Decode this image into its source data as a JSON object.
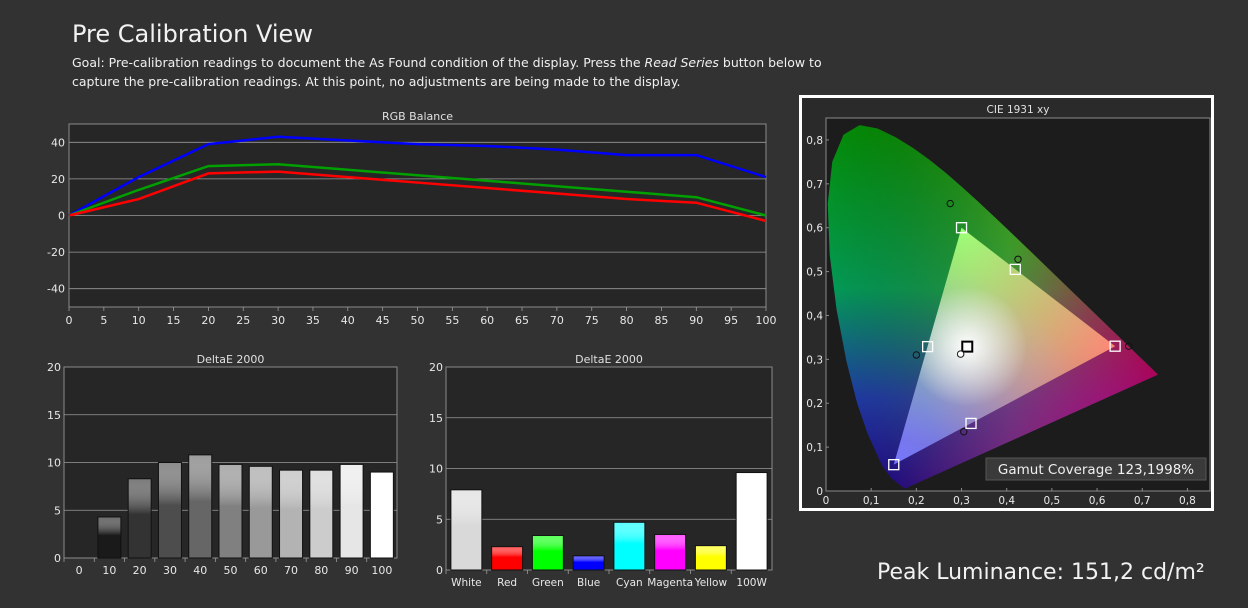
{
  "page": {
    "title": "Pre Calibration View",
    "goal_part1": "Goal: Pre-calibration readings to document the As Found condition of the display. Press the ",
    "goal_emphasis": "Read Series",
    "goal_part2": " button below to capture the pre-calibration readings. At this point, no adjustments are being made to the display.",
    "peak_luminance": "Peak Luminance: 151,2 cd/m²"
  },
  "chart_data": [
    {
      "type": "line",
      "title": "RGB Balance",
      "x": [
        0,
        10,
        20,
        30,
        40,
        50,
        60,
        70,
        80,
        90,
        100
      ],
      "xticks": [
        0,
        5,
        10,
        15,
        20,
        25,
        30,
        35,
        40,
        45,
        50,
        55,
        60,
        65,
        70,
        75,
        80,
        85,
        90,
        95,
        100
      ],
      "xlim": [
        0,
        100
      ],
      "ylim": [
        -50,
        50
      ],
      "yticks": [
        40,
        20,
        0,
        -20,
        -40
      ],
      "grid": true,
      "series": [
        {
          "color": "#0000ff",
          "values": [
            0,
            21,
            39,
            43,
            41,
            39,
            38,
            36,
            33,
            33,
            21
          ]
        },
        {
          "color": "#00a000",
          "values": [
            0,
            14,
            27,
            28,
            25,
            22,
            19,
            16,
            13,
            10,
            0
          ]
        },
        {
          "color": "#ff0000",
          "values": [
            0,
            9,
            23,
            24,
            21,
            18,
            15,
            12,
            9,
            7,
            -3
          ]
        }
      ]
    },
    {
      "type": "bar",
      "title": "DeltaE 2000",
      "categories": [
        "0",
        "10",
        "20",
        "30",
        "40",
        "50",
        "60",
        "70",
        "80",
        "90",
        "100"
      ],
      "values": [
        0,
        4.3,
        8.3,
        10,
        10.8,
        9.8,
        9.6,
        9.2,
        9.2,
        9.8,
        9
      ],
      "ylim": [
        0,
        20
      ],
      "yticks": [
        0,
        5,
        10,
        15,
        20
      ],
      "bar_shades": [
        "#000000",
        "#1a1a1a",
        "#333333",
        "#4d4d4d",
        "#666666",
        "#808080",
        "#999999",
        "#b3b3b3",
        "#cccccc",
        "#e6e6e6",
        "#ffffff"
      ]
    },
    {
      "type": "bar",
      "title": "DeltaE 2000",
      "categories": [
        "White",
        "Red",
        "Green",
        "Blue",
        "Cyan",
        "Magenta",
        "Yellow",
        "100W"
      ],
      "values": [
        7.9,
        2.3,
        3.4,
        1.4,
        4.7,
        3.5,
        2.4,
        9.6
      ],
      "ylim": [
        0,
        20
      ],
      "yticks": [
        0,
        5,
        10,
        15,
        20
      ],
      "bar_colors": [
        "#d9d9d9",
        "#ff0000",
        "#00ff00",
        "#0000ff",
        "#00ffff",
        "#ff00ff",
        "#ffff00",
        "#ffffff"
      ]
    },
    {
      "type": "scatter",
      "title": "CIE 1931 xy",
      "xlim": [
        0,
        0.85
      ],
      "ylim": [
        0,
        0.85
      ],
      "xticks": [
        "0",
        "0,1",
        "0,2",
        "0,3",
        "0,4",
        "0,5",
        "0,6",
        "0,7",
        "0,8"
      ],
      "yticks": [
        "0",
        "0,1",
        "0,2",
        "0,3",
        "0,4",
        "0,5",
        "0,6",
        "0,7",
        "0,8"
      ],
      "target_gamut": [
        [
          0.64,
          0.33
        ],
        [
          0.3,
          0.6
        ],
        [
          0.15,
          0.06
        ]
      ],
      "targets": [
        {
          "x": 0.64,
          "y": 0.33
        },
        {
          "x": 0.3,
          "y": 0.6
        },
        {
          "x": 0.15,
          "y": 0.06
        },
        {
          "x": 0.225,
          "y": 0.329
        },
        {
          "x": 0.321,
          "y": 0.154
        },
        {
          "x": 0.419,
          "y": 0.505
        },
        {
          "x": 0.3127,
          "y": 0.329
        }
      ],
      "measured": [
        {
          "x": 0.67,
          "y": 0.33
        },
        {
          "x": 0.275,
          "y": 0.655
        },
        {
          "x": 0.2,
          "y": 0.31
        },
        {
          "x": 0.305,
          "y": 0.135
        },
        {
          "x": 0.425,
          "y": 0.528
        },
        {
          "x": 0.298,
          "y": 0.312
        }
      ],
      "gamut_coverage": "Gamut Coverage 123,1998%"
    }
  ]
}
